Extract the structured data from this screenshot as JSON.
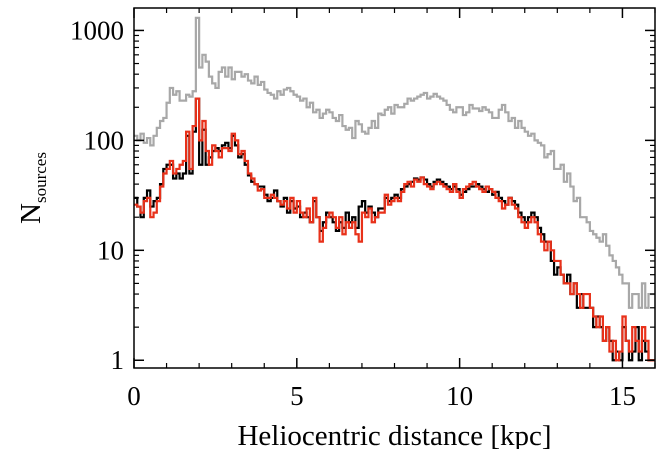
{
  "chart_data": {
    "type": "histogram-step",
    "title": "",
    "xlabel": "Heliocentric distance [kpc]",
    "ylabel_main": "N",
    "ylabel_sub": "sources",
    "xlim": [
      0,
      16
    ],
    "ylim": [
      0.85,
      1600
    ],
    "yscale": "log",
    "x_ticks": [
      0,
      5,
      10,
      15
    ],
    "x_tick_labels": [
      "0",
      "5",
      "10",
      "15"
    ],
    "y_ticks": [
      1,
      10,
      100,
      1000
    ],
    "y_tick_labels": [
      "1",
      "10",
      "100",
      "1000"
    ],
    "grid": false,
    "legend": "none",
    "bin_start": 0,
    "bin_width": 0.1,
    "series": [
      {
        "color": "#a8a8a8",
        "values": [
          110,
          100,
          115,
          95,
          105,
          90,
          110,
          130,
          150,
          160,
          220,
          300,
          260,
          280,
          230,
          230,
          260,
          250,
          280,
          1300,
          460,
          600,
          520,
          380,
          330,
          300,
          420,
          460,
          380,
          460,
          360,
          420,
          420,
          380,
          400,
          350,
          330,
          380,
          320,
          340,
          290,
          270,
          260,
          240,
          280,
          260,
          290,
          300,
          280,
          260,
          250,
          230,
          240,
          200,
          220,
          180,
          190,
          160,
          175,
          190,
          180,
          160,
          150,
          170,
          135,
          125,
          130,
          105,
          150,
          140,
          120,
          115,
          130,
          150,
          130,
          175,
          170,
          190,
          200,
          175,
          210,
          200,
          200,
          215,
          240,
          230,
          240,
          250,
          260,
          270,
          240,
          250,
          265,
          250,
          240,
          230,
          210,
          190,
          180,
          200,
          200,
          170,
          180,
          210,
          195,
          195,
          185,
          200,
          190,
          180,
          160,
          160,
          190,
          210,
          180,
          150,
          160,
          130,
          150,
          130,
          120,
          110,
          115,
          100,
          95,
          90,
          70,
          75,
          80,
          55,
          55,
          60,
          42,
          50,
          38,
          28,
          30,
          20,
          20,
          18,
          15,
          14,
          13,
          12,
          14,
          11,
          9,
          8,
          7,
          6,
          5,
          5,
          3,
          4,
          4,
          3,
          5,
          3,
          4,
          4
        ]
      },
      {
        "color": "#000000",
        "values": [
          30,
          25,
          20,
          30,
          35,
          25,
          28,
          30,
          40,
          55,
          60,
          60,
          45,
          50,
          45,
          50,
          110,
          50,
          120,
          240,
          60,
          125,
          60,
          70,
          80,
          85,
          80,
          90,
          95,
          85,
          110,
          90,
          70,
          75,
          60,
          48,
          42,
          40,
          38,
          38,
          32,
          28,
          30,
          35,
          28,
          25,
          30,
          22,
          28,
          24,
          25,
          20,
          22,
          20,
          18,
          28,
          20,
          15,
          18,
          22,
          20,
          18,
          15,
          18,
          16,
          22,
          18,
          20,
          16,
          25,
          28,
          22,
          25,
          22,
          20,
          24,
          24,
          30,
          28,
          30,
          32,
          30,
          36,
          38,
          40,
          42,
          45,
          44,
          46,
          44,
          40,
          38,
          42,
          44,
          42,
          40,
          38,
          36,
          38,
          36,
          32,
          34,
          36,
          38,
          38,
          40,
          38,
          36,
          34,
          36,
          32,
          34,
          30,
          28,
          26,
          30,
          28,
          26,
          22,
          20,
          18,
          20,
          22,
          20,
          16,
          14,
          12,
          12,
          8,
          6,
          7,
          6,
          5,
          6,
          4,
          5,
          3,
          4,
          3,
          3,
          3,
          2,
          2.5,
          2,
          1.5,
          2,
          1.5,
          1,
          1.2,
          1,
          2,
          1.5,
          1,
          1.2,
          2,
          1,
          1.5,
          1.2,
          1,
          1
        ]
      },
      {
        "color": "#e8311a",
        "values": [
          26,
          25,
          22,
          28,
          30,
          20,
          22,
          28,
          38,
          50,
          55,
          65,
          50,
          55,
          60,
          65,
          120,
          55,
          135,
          240,
          100,
          150,
          80,
          60,
          90,
          80,
          70,
          85,
          85,
          80,
          115,
          100,
          75,
          80,
          65,
          50,
          45,
          40,
          35,
          36,
          30,
          30,
          32,
          30,
          28,
          26,
          28,
          24,
          30,
          22,
          28,
          22,
          20,
          24,
          18,
          30,
          20,
          12,
          16,
          20,
          22,
          20,
          16,
          20,
          14,
          18,
          16,
          18,
          14,
          12,
          22,
          20,
          24,
          18,
          20,
          22,
          22,
          32,
          26,
          28,
          30,
          28,
          34,
          40,
          42,
          38,
          44,
          42,
          46,
          40,
          38,
          36,
          40,
          42,
          40,
          38,
          36,
          34,
          40,
          34,
          30,
          36,
          38,
          40,
          42,
          38,
          36,
          34,
          38,
          36,
          34,
          30,
          28,
          24,
          26,
          30,
          26,
          24,
          20,
          18,
          16,
          18,
          20,
          18,
          14,
          12,
          10,
          12,
          10,
          8,
          8,
          6,
          5,
          5,
          4,
          5,
          4,
          3,
          4,
          4,
          3,
          2.5,
          2,
          2.5,
          1.5,
          2,
          1.2,
          1.5,
          1,
          1.2,
          2.5,
          1.5,
          1.2,
          2,
          1.5,
          1.2,
          2,
          1.5,
          1,
          1
        ]
      }
    ]
  }
}
